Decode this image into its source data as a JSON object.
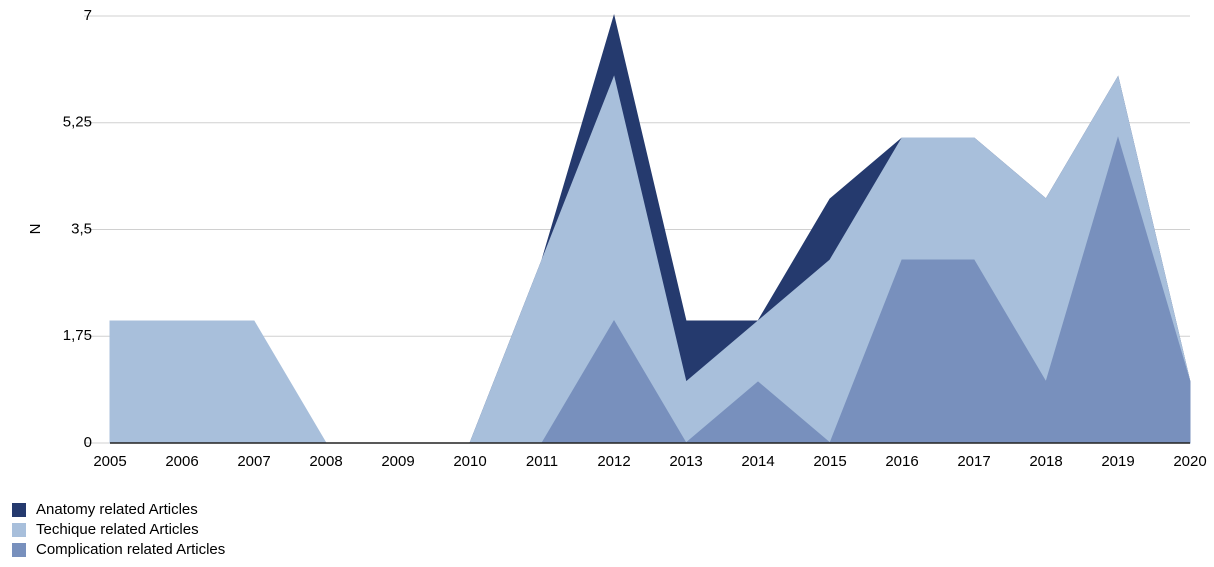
{
  "chart_data": {
    "type": "area",
    "y_label": "N",
    "x": [
      2005,
      2006,
      2007,
      2008,
      2009,
      2010,
      2011,
      2012,
      2013,
      2014,
      2015,
      2016,
      2017,
      2018,
      2019,
      2020
    ],
    "xlim": [
      2005,
      2020
    ],
    "ylim": [
      0,
      7
    ],
    "yticks": [
      0,
      {
        "value": 1.75,
        "label": "1,75"
      },
      {
        "value": 3.5,
        "label": "3,5"
      },
      {
        "value": 5.25,
        "label": "5,25"
      },
      7
    ],
    "grid": true,
    "legend": "bottom-left",
    "series": [
      {
        "name": "Anatomy related Articles",
        "color": "#253a6e",
        "values": [
          0,
          0,
          0,
          0,
          0,
          0,
          3,
          7,
          2,
          2,
          4,
          5,
          5,
          4,
          6,
          1
        ]
      },
      {
        "name": "Techique related Articles",
        "color": "#a8bfdb",
        "values": [
          2,
          2,
          2,
          0,
          0,
          0,
          3,
          6,
          1,
          2,
          3,
          5,
          5,
          4,
          6,
          1
        ]
      },
      {
        "name": "Complication related Articles",
        "color": "#7890bd",
        "values": [
          0,
          0,
          0,
          0,
          0,
          0,
          0,
          2,
          0,
          1,
          0,
          3,
          3,
          1,
          5,
          1
        ]
      }
    ]
  }
}
